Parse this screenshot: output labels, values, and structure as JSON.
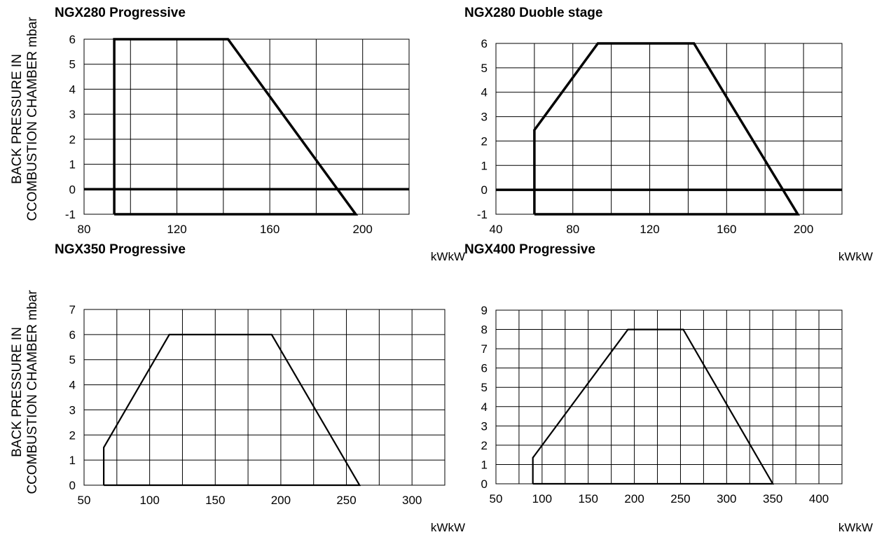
{
  "y_axis_label": [
    "BACK PRESSURE IN",
    "CCOMBUSTION CHAMBER mbar"
  ],
  "chart_data": [
    {
      "type": "area",
      "title": "NGX280 Progressive",
      "xlabel": "kWkW",
      "ylabel": "BACK PRESSURE IN CCOMBUSTION CHAMBER mbar",
      "x_ticks": [
        80,
        120,
        160,
        200
      ],
      "x_range": [
        80,
        220
      ],
      "y_ticks": [
        -1,
        0,
        1,
        2,
        3,
        4,
        5,
        6
      ],
      "y_range": [
        -1,
        6
      ],
      "grid": true,
      "x_gridlines": [
        80,
        100,
        120,
        140,
        160,
        180,
        200,
        220
      ],
      "zero_line": true,
      "series": [
        {
          "values": [
            [
              93,
              -1
            ],
            [
              93,
              6
            ],
            [
              142,
              6
            ],
            [
              197,
              -1
            ],
            [
              93,
              -1
            ]
          ]
        }
      ]
    },
    {
      "type": "area",
      "title": "NGX280 Duoble stage",
      "xlabel": "kWkW",
      "ylabel": "",
      "x_ticks": [
        40,
        80,
        120,
        160,
        200
      ],
      "x_range": [
        40,
        220
      ],
      "y_ticks": [
        -1,
        0,
        1,
        2,
        3,
        4,
        5,
        6
      ],
      "y_range": [
        -1,
        6
      ],
      "grid": true,
      "x_gridlines": [
        40,
        60,
        80,
        100,
        120,
        140,
        160,
        180,
        200,
        220
      ],
      "zero_line": true,
      "series": [
        {
          "values": [
            [
              60,
              -1
            ],
            [
              60,
              2.45
            ],
            [
              93,
              6
            ],
            [
              143,
              6
            ],
            [
              197,
              -1
            ],
            [
              60,
              -1
            ]
          ]
        }
      ]
    },
    {
      "type": "area",
      "title": "NGX350 Progressive",
      "xlabel": "kWkW",
      "ylabel": "BACK PRESSURE IN CCOMBUSTION CHAMBER mbar",
      "x_ticks": [
        50,
        100,
        150,
        200,
        250,
        300
      ],
      "x_range": [
        50,
        325
      ],
      "y_ticks": [
        0,
        1,
        2,
        3,
        4,
        5,
        6,
        7
      ],
      "y_range": [
        0,
        7
      ],
      "grid": true,
      "x_gridlines": [
        50,
        75,
        100,
        125,
        150,
        175,
        200,
        225,
        250,
        275,
        300,
        325
      ],
      "zero_line": false,
      "series": [
        {
          "values": [
            [
              65,
              0
            ],
            [
              65,
              1.5
            ],
            [
              115,
              6
            ],
            [
              193,
              6
            ],
            [
              260,
              0
            ],
            [
              65,
              0
            ]
          ]
        }
      ]
    },
    {
      "type": "area",
      "title": "NGX400 Progressive",
      "xlabel": "kWkW",
      "ylabel": "",
      "x_ticks": [
        50,
        100,
        150,
        200,
        250,
        300,
        350,
        400
      ],
      "x_range": [
        50,
        425
      ],
      "y_ticks": [
        0,
        1,
        2,
        3,
        4,
        5,
        6,
        7,
        8,
        9
      ],
      "y_range": [
        0,
        9
      ],
      "grid": true,
      "x_gridlines": [
        50,
        75,
        100,
        125,
        150,
        175,
        200,
        225,
        250,
        275,
        300,
        325,
        350,
        375,
        400,
        425
      ],
      "zero_line": false,
      "series": [
        {
          "values": [
            [
              90,
              0
            ],
            [
              90,
              1.35
            ],
            [
              193,
              8
            ],
            [
              253,
              8
            ],
            [
              350,
              0
            ],
            [
              90,
              0
            ]
          ]
        }
      ]
    }
  ]
}
